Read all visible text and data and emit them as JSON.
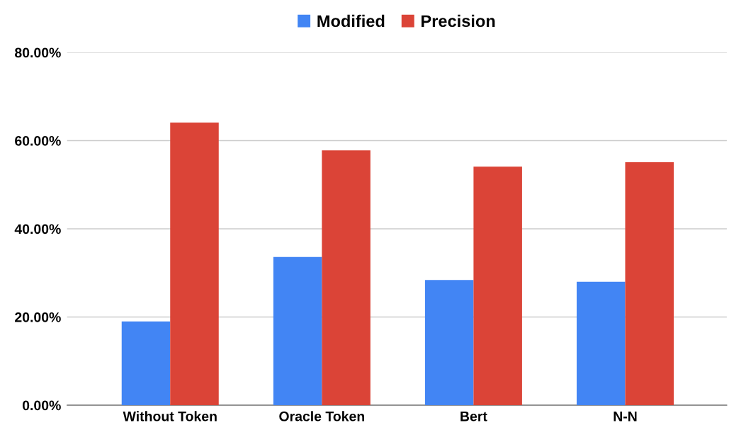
{
  "chart_data": {
    "type": "bar",
    "categories": [
      "Without Token",
      "Oracle Token",
      "Bert",
      "N-N"
    ],
    "series": [
      {
        "name": "Modified",
        "color": "#4285f4",
        "values": [
          19.0,
          33.6,
          28.4,
          28.0
        ]
      },
      {
        "name": "Precision",
        "color": "#db4437",
        "values": [
          64.1,
          57.8,
          54.1,
          55.1
        ]
      }
    ],
    "ylim": [
      0,
      80
    ],
    "yticks": [
      {
        "value": 0,
        "label": "0.00%"
      },
      {
        "value": 20,
        "label": "20.00%"
      },
      {
        "value": 40,
        "label": "40.00%"
      },
      {
        "value": 60,
        "label": "60.00%"
      },
      {
        "value": 80,
        "label": "80.00%"
      }
    ],
    "grid": "y",
    "legend": "top"
  }
}
